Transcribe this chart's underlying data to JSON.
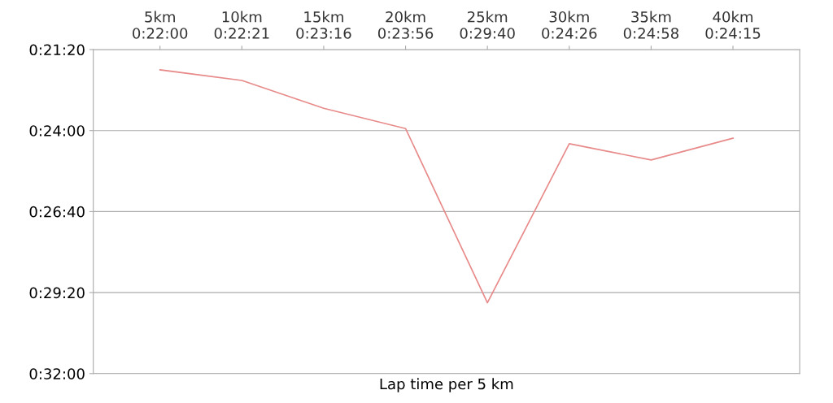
{
  "chart_data": {
    "type": "line",
    "xlabel": "Lap time per 5 km",
    "categories": [
      "5km\n0:22:00",
      "10km\n0:22:21",
      "15km\n0:23:16",
      "20km\n0:23:56",
      "25km\n0:29:40",
      "30km\n0:24:26",
      "35km\n0:24:58",
      "40km\n0:24:15"
    ],
    "values": [
      1320,
      1341,
      1396,
      1436,
      1780,
      1466,
      1498,
      1455
    ],
    "color": "#e88a8a",
    "ylim": [
      1920,
      1280
    ],
    "yticks": [
      {
        "value": 1280,
        "label": "0:21:20"
      },
      {
        "value": 1440,
        "label": "0:24:00"
      },
      {
        "value": 1600,
        "label": "0:26:40"
      },
      {
        "value": 1760,
        "label": "0:29:20"
      },
      {
        "value": 1920,
        "label": "0:32:00"
      }
    ],
    "grid": "y",
    "legend": false,
    "marker": "none",
    "line_style": "solid"
  }
}
